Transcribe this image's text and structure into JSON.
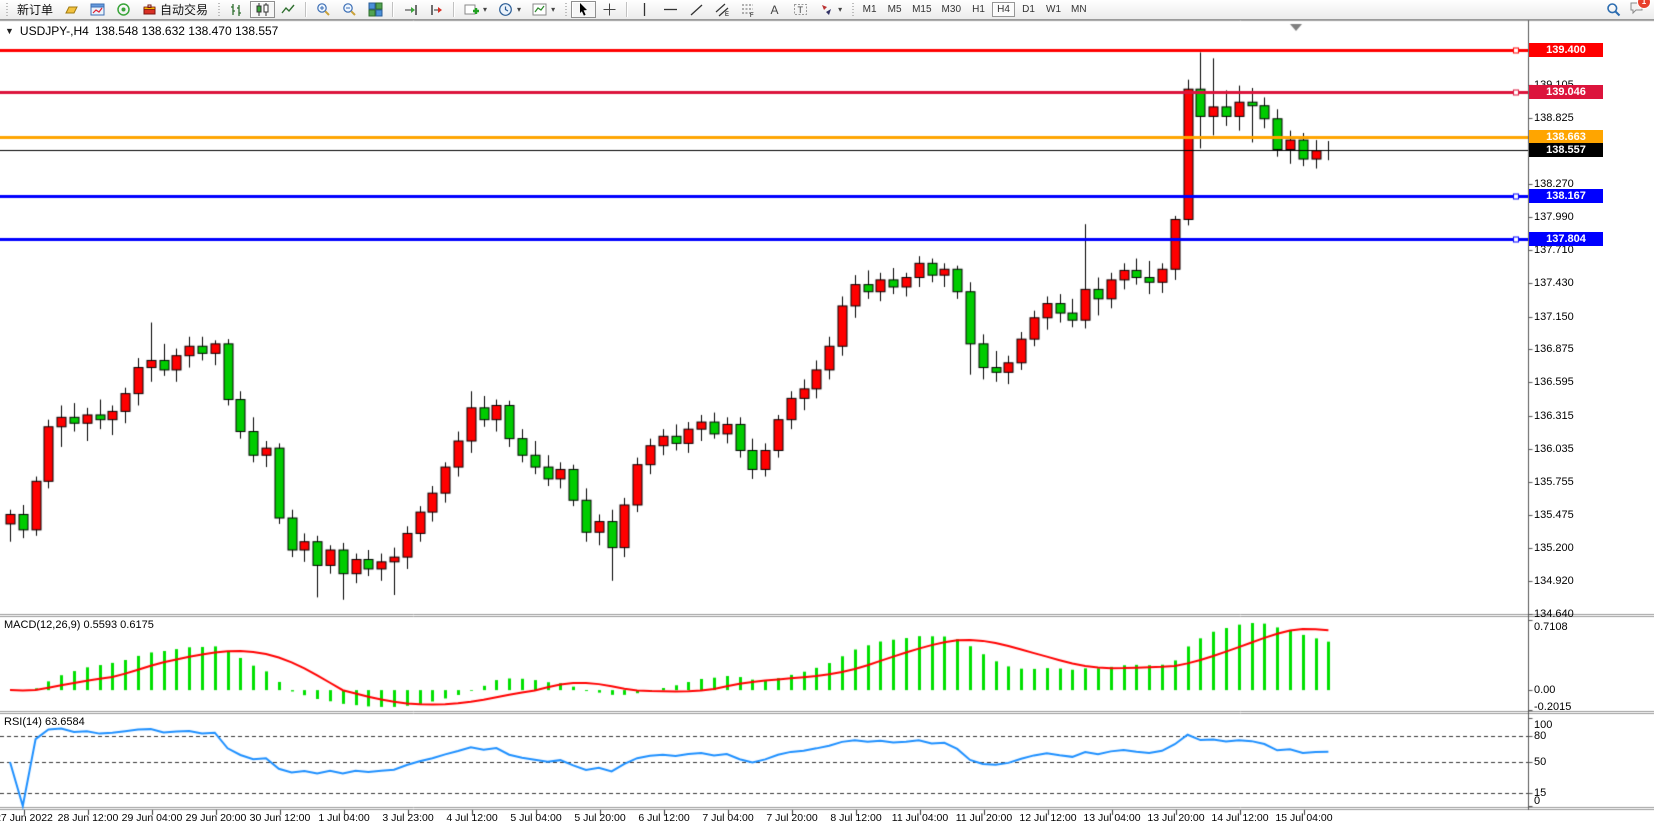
{
  "window": {
    "collapse_icon": "▼",
    "title": "USDJPY-,H4",
    "ohlc_display": "138.548 138.632 138.470 138.557"
  },
  "toolbar": {
    "new_order": "新订单",
    "autotrading": "自动交易",
    "timeframes": [
      "M1",
      "M5",
      "M15",
      "M30",
      "H1",
      "H4",
      "D1",
      "W1",
      "MN"
    ],
    "active_timeframe": "H4",
    "badge_count": "1"
  },
  "chart_data": {
    "type": "candlestick",
    "symbol": "USDJPY-",
    "timeframe": "H4",
    "up_color": "#ff0000",
    "down_color": "#00cc00",
    "y_ticks": [
      "139.105",
      "138.825",
      "138.270",
      "137.990",
      "137.710",
      "137.430",
      "137.150",
      "136.875",
      "136.595",
      "136.315",
      "136.035",
      "135.755",
      "135.475",
      "135.200",
      "134.920",
      "134.640"
    ],
    "x_labels": [
      "27 Jun 2022",
      "28 Jun 12:00",
      "29 Jun 04:00",
      "29 Jun 20:00",
      "30 Jun 12:00",
      "1 Jul 04:00",
      "3 Jul 23:00",
      "4 Jul 12:00",
      "5 Jul 04:00",
      "5 Jul 20:00",
      "6 Jul 12:00",
      "7 Jul 04:00",
      "7 Jul 20:00",
      "8 Jul 12:00",
      "11 Jul 04:00",
      "11 Jul 20:00",
      "12 Jul 12:00",
      "13 Jul 04:00",
      "13 Jul 20:00",
      "14 Jul 12:00",
      "15 Jul 04:00"
    ],
    "horizontal_lines": [
      {
        "price": 139.4,
        "label": "139.400",
        "color": "#ff0000",
        "width": 3,
        "handle": true
      },
      {
        "price": 139.046,
        "label": "139.046",
        "color": "#dc143c",
        "width": 3,
        "handle": true
      },
      {
        "price": 138.663,
        "label": "138.663",
        "color": "#ffa500",
        "width": 3,
        "handle": false
      },
      {
        "price": 138.167,
        "label": "138.167",
        "color": "#0000ff",
        "width": 3,
        "handle": true
      },
      {
        "price": 137.804,
        "label": "137.804",
        "color": "#0000ff",
        "width": 3,
        "handle": true
      }
    ],
    "current_price": {
      "price": 138.557,
      "label": "138.557",
      "color": "#000000"
    },
    "candles": [
      [
        135.4,
        135.52,
        135.25,
        135.48
      ],
      [
        135.48,
        135.56,
        135.28,
        135.35
      ],
      [
        135.35,
        135.8,
        135.3,
        135.76
      ],
      [
        135.76,
        136.28,
        135.7,
        136.22
      ],
      [
        136.22,
        136.4,
        136.05,
        136.3
      ],
      [
        136.3,
        136.42,
        136.18,
        136.25
      ],
      [
        136.25,
        136.38,
        136.1,
        136.32
      ],
      [
        136.32,
        136.45,
        136.2,
        136.28
      ],
      [
        136.28,
        136.4,
        136.15,
        136.35
      ],
      [
        136.35,
        136.55,
        136.25,
        136.5
      ],
      [
        136.5,
        136.8,
        136.4,
        136.72
      ],
      [
        136.72,
        137.1,
        136.6,
        136.78
      ],
      [
        136.78,
        136.92,
        136.65,
        136.7
      ],
      [
        136.7,
        136.88,
        136.6,
        136.82
      ],
      [
        136.82,
        136.98,
        136.72,
        136.9
      ],
      [
        136.9,
        136.98,
        136.78,
        136.84
      ],
      [
        136.84,
        136.95,
        136.74,
        136.92
      ],
      [
        136.92,
        136.96,
        136.4,
        136.45
      ],
      [
        136.45,
        136.52,
        136.12,
        136.18
      ],
      [
        136.18,
        136.3,
        135.92,
        135.98
      ],
      [
        135.98,
        136.1,
        135.88,
        136.04
      ],
      [
        136.04,
        136.08,
        135.4,
        135.45
      ],
      [
        135.45,
        135.52,
        135.12,
        135.18
      ],
      [
        135.18,
        135.32,
        135.08,
        135.25
      ],
      [
        135.25,
        135.3,
        134.78,
        135.05
      ],
      [
        135.05,
        135.22,
        134.98,
        135.18
      ],
      [
        135.18,
        135.24,
        134.76,
        134.98
      ],
      [
        134.98,
        135.15,
        134.9,
        135.1
      ],
      [
        135.1,
        135.18,
        134.96,
        135.02
      ],
      [
        135.02,
        135.15,
        134.92,
        135.08
      ],
      [
        135.08,
        135.2,
        134.8,
        135.12
      ],
      [
        135.12,
        135.38,
        135.02,
        135.32
      ],
      [
        135.32,
        135.55,
        135.25,
        135.5
      ],
      [
        135.5,
        135.72,
        135.42,
        135.66
      ],
      [
        135.66,
        135.92,
        135.58,
        135.88
      ],
      [
        135.88,
        136.18,
        135.8,
        136.1
      ],
      [
        136.1,
        136.52,
        136.0,
        136.38
      ],
      [
        136.38,
        136.48,
        136.22,
        136.28
      ],
      [
        136.28,
        136.45,
        136.18,
        136.4
      ],
      [
        136.4,
        136.44,
        136.05,
        136.12
      ],
      [
        136.12,
        136.2,
        135.92,
        135.98
      ],
      [
        135.98,
        136.1,
        135.82,
        135.88
      ],
      [
        135.88,
        135.98,
        135.72,
        135.78
      ],
      [
        135.78,
        135.92,
        135.7,
        135.86
      ],
      [
        135.86,
        135.9,
        135.55,
        135.6
      ],
      [
        135.6,
        135.7,
        135.25,
        135.33
      ],
      [
        135.33,
        135.48,
        135.22,
        135.42
      ],
      [
        135.42,
        135.52,
        134.92,
        135.2
      ],
      [
        135.2,
        135.62,
        135.12,
        135.56
      ],
      [
        135.56,
        135.96,
        135.5,
        135.9
      ],
      [
        135.9,
        136.12,
        135.82,
        136.06
      ],
      [
        136.06,
        136.2,
        135.98,
        136.14
      ],
      [
        136.14,
        136.24,
        136.02,
        136.08
      ],
      [
        136.08,
        136.26,
        136.0,
        136.2
      ],
      [
        136.2,
        136.32,
        136.1,
        136.26
      ],
      [
        136.26,
        136.34,
        136.12,
        136.16
      ],
      [
        136.16,
        136.3,
        136.08,
        136.24
      ],
      [
        136.24,
        136.3,
        135.96,
        136.02
      ],
      [
        136.02,
        136.12,
        135.78,
        135.86
      ],
      [
        135.86,
        136.08,
        135.8,
        136.02
      ],
      [
        136.02,
        136.32,
        135.96,
        136.28
      ],
      [
        136.28,
        136.52,
        136.2,
        136.46
      ],
      [
        136.46,
        136.62,
        136.36,
        136.54
      ],
      [
        136.54,
        136.78,
        136.46,
        136.7
      ],
      [
        136.7,
        136.98,
        136.62,
        136.9
      ],
      [
        136.9,
        137.32,
        136.82,
        137.24
      ],
      [
        137.24,
        137.5,
        137.14,
        137.42
      ],
      [
        137.42,
        137.54,
        137.3,
        137.36
      ],
      [
        137.36,
        137.52,
        137.28,
        137.46
      ],
      [
        137.46,
        137.56,
        137.34,
        137.4
      ],
      [
        137.4,
        137.52,
        137.32,
        137.48
      ],
      [
        137.48,
        137.66,
        137.4,
        137.6
      ],
      [
        137.6,
        137.64,
        137.44,
        137.5
      ],
      [
        137.5,
        137.6,
        137.4,
        137.55
      ],
      [
        137.55,
        137.58,
        137.3,
        137.36
      ],
      [
        137.36,
        137.44,
        136.66,
        136.92
      ],
      [
        136.92,
        137.0,
        136.62,
        136.72
      ],
      [
        136.72,
        136.86,
        136.6,
        136.68
      ],
      [
        136.68,
        136.82,
        136.58,
        136.76
      ],
      [
        136.76,
        137.02,
        136.7,
        136.96
      ],
      [
        136.96,
        137.2,
        136.9,
        137.14
      ],
      [
        137.14,
        137.32,
        137.04,
        137.26
      ],
      [
        137.26,
        137.34,
        137.1,
        137.18
      ],
      [
        137.18,
        137.3,
        137.06,
        137.12
      ],
      [
        137.12,
        137.93,
        137.05,
        137.38
      ],
      [
        137.38,
        137.48,
        137.16,
        137.3
      ],
      [
        137.3,
        137.52,
        137.22,
        137.46
      ],
      [
        137.46,
        137.6,
        137.38,
        137.54
      ],
      [
        137.54,
        137.64,
        137.42,
        137.48
      ],
      [
        137.48,
        137.62,
        137.34,
        137.44
      ],
      [
        137.44,
        137.6,
        137.35,
        137.55
      ],
      [
        137.55,
        138.0,
        137.46,
        137.97
      ],
      [
        137.97,
        139.15,
        137.92,
        139.07
      ],
      [
        139.07,
        139.38,
        138.57,
        138.84
      ],
      [
        138.84,
        139.33,
        138.68,
        138.92
      ],
      [
        138.92,
        139.06,
        138.76,
        138.84
      ],
      [
        138.84,
        139.1,
        138.72,
        138.96
      ],
      [
        138.96,
        139.08,
        138.62,
        138.93
      ],
      [
        138.93,
        139.0,
        138.74,
        138.82
      ],
      [
        138.82,
        138.9,
        138.5,
        138.56
      ],
      [
        138.56,
        138.72,
        138.44,
        138.64
      ],
      [
        138.64,
        138.7,
        138.42,
        138.48
      ],
      [
        138.48,
        138.64,
        138.4,
        138.55
      ],
      [
        138.548,
        138.632,
        138.47,
        138.557
      ]
    ],
    "indicators": {
      "macd": {
        "label": "MACD(12,26,9) 0.5593 0.6175",
        "params": [
          12,
          26,
          9
        ],
        "macd_value": 0.5593,
        "signal_value": 0.6175,
        "ylim": [
          -0.2015,
          0.7108
        ],
        "axis_labels": [
          "0.7108",
          "0.00",
          "-0.2015"
        ],
        "axis_values": [
          0.7108,
          0,
          -0.2015
        ],
        "histogram_color": "#00e000",
        "signal_color": "#ff0000"
      },
      "rsi": {
        "label": "RSI(14) 63.6584",
        "period": 14,
        "value": 63.6584,
        "levels": [
          80,
          50,
          15
        ],
        "axis_labels": [
          "100",
          "80",
          "50",
          "15",
          "0"
        ],
        "axis_values": [
          100,
          80,
          50,
          15,
          0
        ],
        "line_color": "#1e90ff",
        "ylim": [
          0,
          100
        ]
      }
    }
  }
}
